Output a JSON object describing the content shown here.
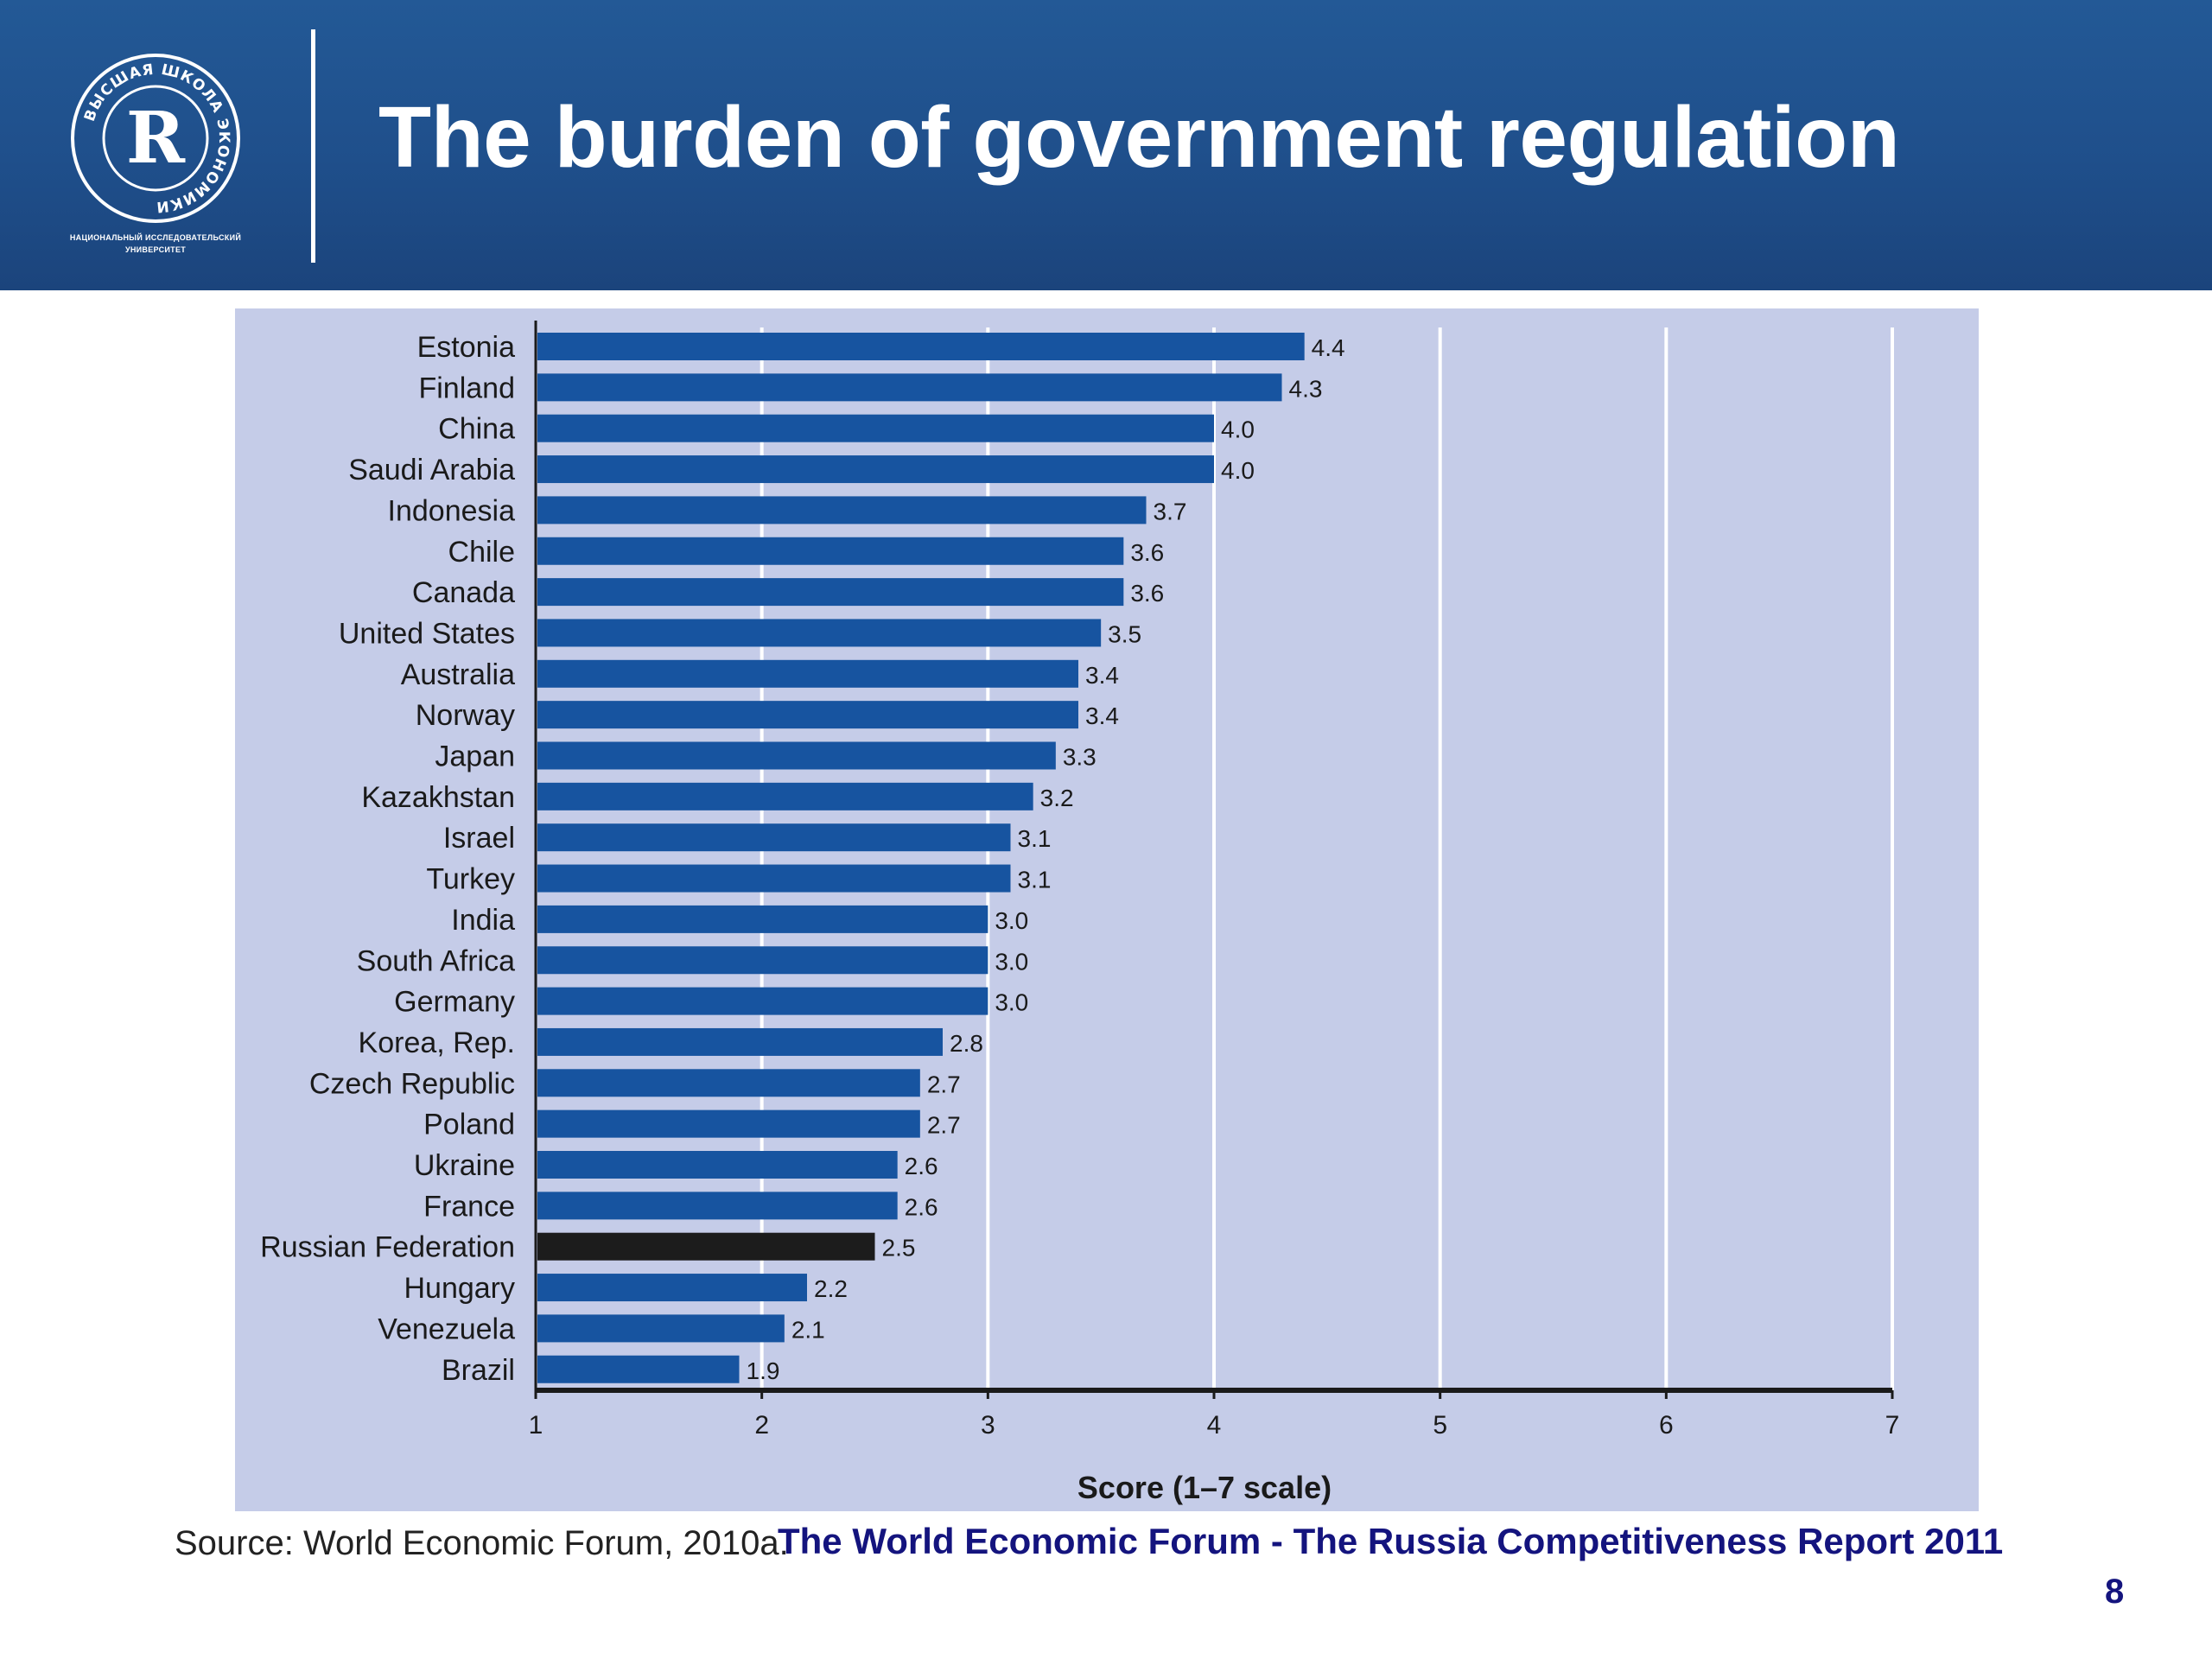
{
  "header": {
    "title": "The burden of government regulation",
    "logo_letter": "R",
    "logo_ring_text": "ВЫСШАЯ ШКОЛА ЭКОНОМИКИ",
    "logo_caption_line1": "НАЦИОНАЛЬНЫЙ ИССЛЕДОВАТЕЛЬСКИЙ",
    "logo_caption_line2": "УНИВЕРСИТЕТ"
  },
  "colors": {
    "header_bg": "#1f4f8b",
    "panel_bg": "#c5cce8",
    "bar": "#1754a0",
    "highlight_bar": "#1c1c1c",
    "credit_text": "#14147e"
  },
  "chart_data": {
    "type": "bar",
    "orientation": "horizontal",
    "categories": [
      "Estonia",
      "Finland",
      "China",
      "Saudi Arabia",
      "Indonesia",
      "Chile",
      "Canada",
      "United States",
      "Australia",
      "Norway",
      "Japan",
      "Kazakhstan",
      "Israel",
      "Turkey",
      "India",
      "South Africa",
      "Germany",
      "Korea, Rep.",
      "Czech Republic",
      "Poland",
      "Ukraine",
      "France",
      "Russian Federation",
      "Hungary",
      "Venezuela",
      "Brazil"
    ],
    "values": [
      4.4,
      4.3,
      4.0,
      4.0,
      3.7,
      3.6,
      3.6,
      3.5,
      3.4,
      3.4,
      3.3,
      3.2,
      3.1,
      3.1,
      3.0,
      3.0,
      3.0,
      2.8,
      2.7,
      2.7,
      2.6,
      2.6,
      2.5,
      2.2,
      2.1,
      1.9
    ],
    "value_labels": [
      "4.4",
      "4.3",
      "4.0",
      "4.0",
      "3.7",
      "3.6",
      "3.6",
      "3.5",
      "3.4",
      "3.4",
      "3.3",
      "3.2",
      "3.1",
      "3.1",
      "3.0",
      "3.0",
      "3.0",
      "2.8",
      "2.7",
      "2.7",
      "2.6",
      "2.6",
      "2.5",
      "2.2",
      "2.1",
      "1.9"
    ],
    "highlight": "Russian Federation",
    "xlim": [
      1,
      7
    ],
    "xticks": [
      "1",
      "2",
      "3",
      "4",
      "5",
      "6",
      "7"
    ],
    "xlabel": "Score (1–7 scale)",
    "title": "",
    "ylabel": "",
    "grid": "vertical"
  },
  "footer": {
    "source": "Source: World Economic Forum, 2010a.",
    "credit": "The World Economic Forum - The Russia Competitiveness Report 2011",
    "page_number": "8"
  }
}
